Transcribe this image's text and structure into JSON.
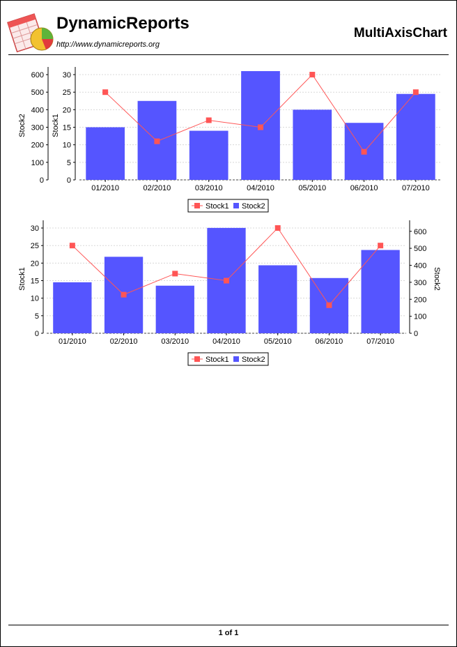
{
  "header": {
    "brand": "DynamicReports",
    "url": "http://www.dynamicreports.org",
    "title": "MultiAxisChart",
    "logo_icon": "spreadsheet-pie-logo-icon"
  },
  "footer": {
    "page_label": "1 of 1"
  },
  "colors": {
    "bar": "#5555ff",
    "line": "#ff5555",
    "grid": "#d8d8d8"
  },
  "chart_data": [
    {
      "type": "bar+line",
      "categories": [
        "01/2010",
        "02/2010",
        "03/2010",
        "04/2010",
        "05/2010",
        "06/2010",
        "07/2010"
      ],
      "series": [
        {
          "name": "Stock1",
          "type": "line",
          "axis": "Stock1",
          "values": [
            25,
            11,
            17,
            15,
            30,
            8,
            25
          ]
        },
        {
          "name": "Stock2",
          "type": "bar",
          "axis": "Stock2",
          "values": [
            300,
            450,
            280,
            620,
            400,
            325,
            490
          ]
        }
      ],
      "axes": [
        {
          "label": "Stock2",
          "position": "left-outer",
          "ticks": [
            0,
            100,
            200,
            300,
            400,
            500,
            600
          ],
          "range": [
            0,
            620
          ]
        },
        {
          "label": "Stock1",
          "position": "left-inner",
          "ticks": [
            0,
            5,
            10,
            15,
            20,
            25,
            30
          ],
          "range": [
            0,
            31
          ]
        }
      ],
      "legend": [
        "Stock1",
        "Stock2"
      ],
      "legend_position": "bottom",
      "grid": true
    },
    {
      "type": "bar+line",
      "categories": [
        "01/2010",
        "02/2010",
        "03/2010",
        "04/2010",
        "05/2010",
        "06/2010",
        "07/2010"
      ],
      "series": [
        {
          "name": "Stock1",
          "type": "line",
          "axis": "Stock1",
          "values": [
            25,
            11,
            17,
            15,
            30,
            8,
            25
          ]
        },
        {
          "name": "Stock2",
          "type": "bar",
          "axis": "Stock2",
          "values": [
            300,
            450,
            280,
            620,
            400,
            325,
            490
          ]
        }
      ],
      "axes": [
        {
          "label": "Stock1",
          "position": "left",
          "ticks": [
            0,
            5,
            10,
            15,
            20,
            25,
            30
          ],
          "range": [
            0,
            31
          ]
        },
        {
          "label": "Stock2",
          "position": "right",
          "ticks": [
            0,
            100,
            200,
            300,
            400,
            500,
            600
          ],
          "range": [
            0,
            640
          ]
        }
      ],
      "legend": [
        "Stock1",
        "Stock2"
      ],
      "legend_position": "bottom",
      "grid": true
    }
  ]
}
